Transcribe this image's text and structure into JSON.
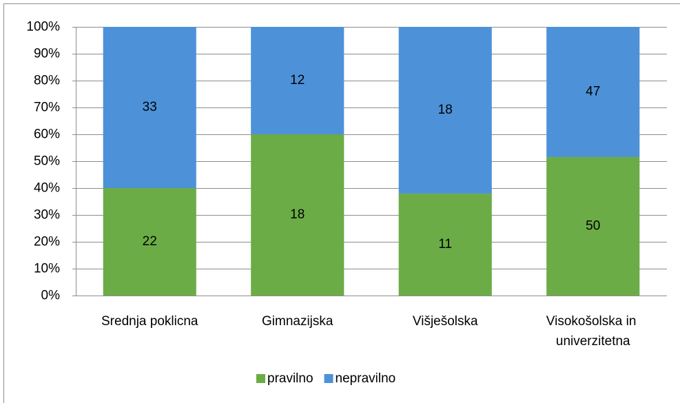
{
  "chart_data": {
    "type": "bar",
    "stacked_percent": true,
    "categories": [
      "Srednja poklicna",
      "Gimnazijska",
      "Višješolska",
      "Visokošolska in univerzitetna"
    ],
    "series": [
      {
        "name": "pravilno",
        "color": "#6cac46",
        "values": [
          22,
          18,
          11,
          50
        ]
      },
      {
        "name": "nepravilno",
        "color": "#4d92d8",
        "values": [
          33,
          12,
          18,
          47
        ]
      }
    ],
    "ylim": [
      0,
      100
    ],
    "yticks": [
      {
        "value": 0,
        "label": "0%"
      },
      {
        "value": 10,
        "label": "10%"
      },
      {
        "value": 20,
        "label": "20%"
      },
      {
        "value": 30,
        "label": "30%"
      },
      {
        "value": 40,
        "label": "40%"
      },
      {
        "value": 50,
        "label": "50%"
      },
      {
        "value": 60,
        "label": "60%"
      },
      {
        "value": 70,
        "label": "70%"
      },
      {
        "value": 80,
        "label": "80%"
      },
      {
        "value": 90,
        "label": "90%"
      },
      {
        "value": 100,
        "label": "100%"
      }
    ],
    "grid": true,
    "legend": "bottom"
  }
}
